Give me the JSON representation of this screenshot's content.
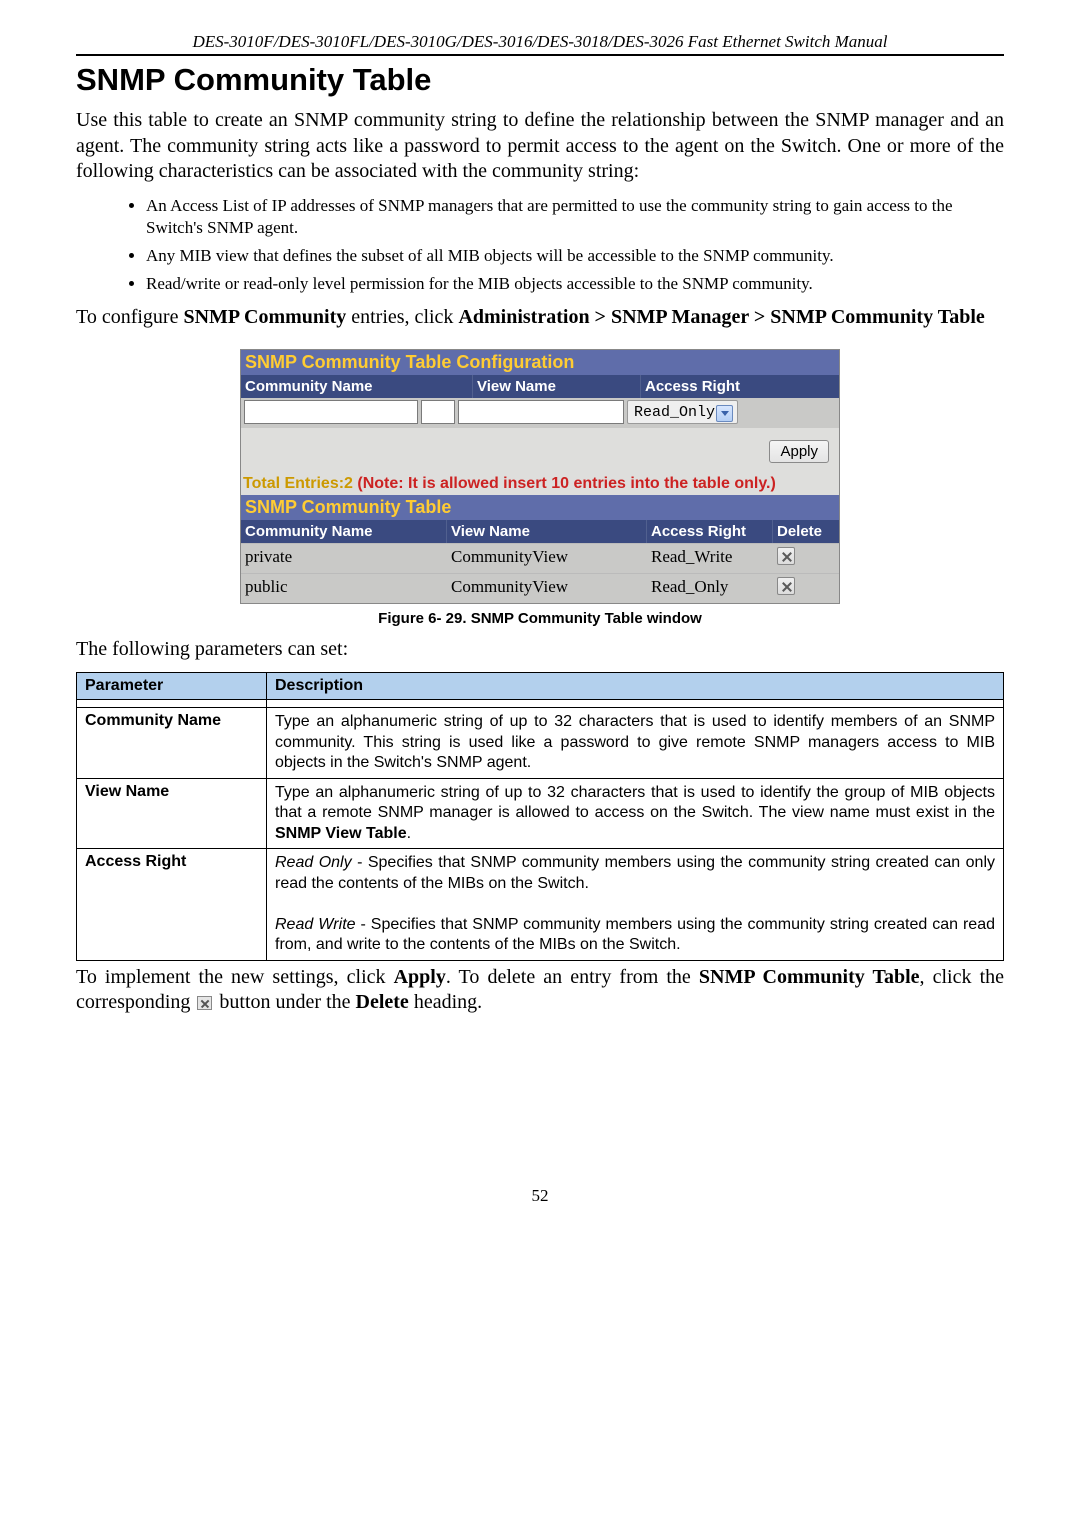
{
  "header": {
    "doc_title": "DES-3010F/DES-3010FL/DES-3010G/DES-3016/DES-3018/DES-3026 Fast Ethernet Switch Manual"
  },
  "title": "SNMP Community Table",
  "intro": "Use this table to create an SNMP community string to define the relationship between the SNMP manager and an agent. The community string acts like a password to permit access to the agent on the Switch. One or more of the following characteristics can be associated with the community string:",
  "bullets": [
    "An Access List of IP addresses of SNMP managers that are permitted to use the community string to gain access to the Switch's SNMP agent.",
    "Any MIB view that defines the subset of all MIB objects will be accessible to the SNMP community.",
    "Read/write or read-only level permission for the MIB objects accessible to the SNMP community."
  ],
  "nav": {
    "prefix": "To configure ",
    "bold1": "SNMP Community",
    "mid": " entries, click ",
    "bold2": "Administration > SNMP Manager > SNMP Community Table"
  },
  "widget": {
    "cfg_title": "SNMP Community Table Configuration",
    "cfg_cols": [
      "Community Name",
      "View Name",
      "Access Right"
    ],
    "access_value": "Read_Only",
    "apply_label": "Apply",
    "totals_prefix": "Total Entries:2 ",
    "totals_note": "(Note: It is allowed insert 10 entries into the table only.)",
    "tbl_title": "SNMP Community Table",
    "tbl_cols": [
      "Community Name",
      "View Name",
      "Access Right",
      "Delete"
    ],
    "rows": [
      {
        "community": "private",
        "view": "CommunityView",
        "access": "Read_Write"
      },
      {
        "community": "public",
        "view": "CommunityView",
        "access": "Read_Only"
      }
    ],
    "colors": {
      "title_bg": "#5f6daa",
      "title_fg": "#ffcc33",
      "head_bg": "#3a4a80",
      "head_fg": "#ffffff",
      "row_bg": "#c9c9c7",
      "panel_bg": "#dededc"
    }
  },
  "figure_caption": "Figure 6- 29. SNMP Community Table window",
  "params_intro": "The following parameters can set:",
  "param_table": {
    "head": [
      "Parameter",
      "Description"
    ],
    "head_bg": "#b3d0ed",
    "rows": [
      {
        "name": "Community Name",
        "desc_html": "Type an alphanumeric string of up to 32 characters that is used to identify members of an SNMP community. This string is used like a password to give remote SNMP managers access to MIB objects in the Switch's SNMP agent."
      },
      {
        "name": "View Name",
        "desc_html": "Type an alphanumeric string of up to 32 characters that is used to identify the group of MIB objects that a remote SNMP manager is allowed to access on the Switch. The view name must exist in the <b>SNMP View Table</b>."
      },
      {
        "name": "Access Right",
        "desc_html": "<i>Read Only</i> - Specifies that SNMP community members using the community string created can only read the contents of the MIBs on the Switch.<br><br><i>Read Write</i> - Specifies that SNMP community members using the community string created can read from, and write to the contents of the MIBs on the Switch."
      }
    ]
  },
  "outro": {
    "p1a": "To implement the new settings, click ",
    "b1": "Apply",
    "p1b": ". To delete an entry from the ",
    "b2": "SNMP Community Table",
    "p1c": ", click the corresponding ",
    "p1d": " button under the ",
    "b3": "Delete",
    "p1e": " heading."
  },
  "page_number": "52"
}
